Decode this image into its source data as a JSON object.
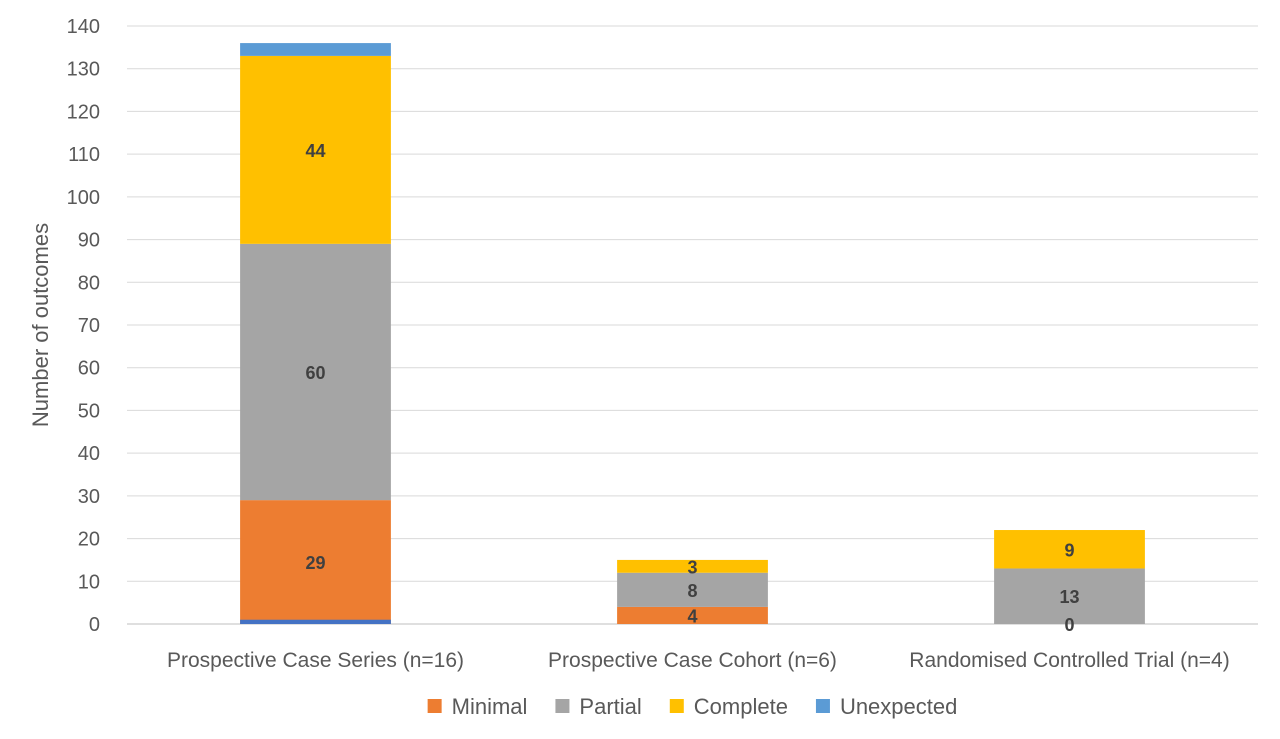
{
  "chart_data": {
    "type": "bar",
    "stacked": true,
    "title": "",
    "xlabel": "",
    "ylabel": "Number of outcomes",
    "ylim": [
      0,
      140
    ],
    "yticks": [
      0,
      10,
      20,
      30,
      40,
      50,
      60,
      70,
      80,
      90,
      100,
      110,
      120,
      130,
      140
    ],
    "grid": "horizontal",
    "legend_position": "bottom",
    "categories": [
      "Prospective Case Series (n=16)",
      "Prospective Case Cohort (n=6)",
      "Randomised Controlled Trial (n=4)"
    ],
    "series": [
      {
        "name": "Minimal",
        "color": "#ED7D31",
        "values": [
          29,
          4,
          0
        ],
        "labels": [
          "29",
          "4",
          "0"
        ]
      },
      {
        "name": "Partial",
        "color": "#A5A5A5",
        "values": [
          60,
          8,
          13
        ],
        "labels": [
          "60",
          "8",
          "13"
        ]
      },
      {
        "name": "Complete",
        "color": "#FFC000",
        "values": [
          44,
          3,
          9
        ],
        "labels": [
          "44",
          "3",
          "9"
        ]
      },
      {
        "name": "Unexpected",
        "color": "#5B9BD5",
        "values": [
          3,
          0,
          0
        ],
        "labels": [
          "",
          "",
          ""
        ]
      }
    ],
    "extra_marks": [
      {
        "category_index": 0,
        "color": "#4472C4",
        "value": 1
      }
    ]
  }
}
